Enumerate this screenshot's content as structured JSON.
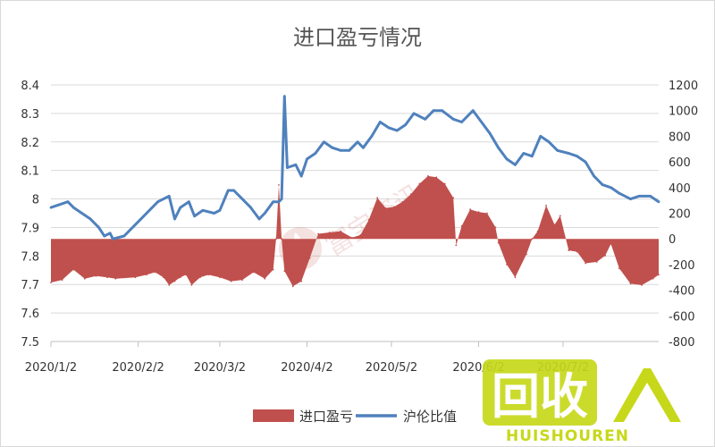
{
  "chart_data": {
    "type": "area+line",
    "title": "进口盈亏情况",
    "x_tick_labels": [
      "2020/1/2",
      "2020/2/2",
      "2020/3/2",
      "2020/4/2",
      "2020/5/2",
      "2020/6/2",
      "2020/7/2"
    ],
    "y_left": {
      "min": 7.5,
      "max": 8.4,
      "step": 0.1,
      "tick_labels": [
        "7.5",
        "7.6",
        "7.7",
        "7.8",
        "7.9",
        "8",
        "8.1",
        "8.2",
        "8.3",
        "8.4"
      ]
    },
    "y_right": {
      "min": -800,
      "max": 1200,
      "step": 200,
      "tick_labels": [
        "-800",
        "-600",
        "-400",
        "-200",
        "0",
        "200",
        "400",
        "600",
        "800",
        "1000",
        "1200"
      ]
    },
    "x_range": [
      "2020-01-02",
      "2020-08-05"
    ],
    "grid": true,
    "legend_position": "bottom",
    "series": [
      {
        "name": "进口盈亏",
        "type": "area",
        "axis": "right",
        "color": "#c0504d",
        "points": [
          [
            "2020-01-02",
            -340
          ],
          [
            "2020-01-06",
            -320
          ],
          [
            "2020-01-10",
            -240
          ],
          [
            "2020-01-14",
            -310
          ],
          [
            "2020-01-18",
            -290
          ],
          [
            "2020-01-22",
            -300
          ],
          [
            "2020-01-25",
            -310
          ],
          [
            "2020-02-01",
            -300
          ],
          [
            "2020-02-05",
            -280
          ],
          [
            "2020-02-08",
            -260
          ],
          [
            "2020-02-11",
            -300
          ],
          [
            "2020-02-13",
            -360
          ],
          [
            "2020-02-15",
            -330
          ],
          [
            "2020-02-17",
            -300
          ],
          [
            "2020-02-19",
            -280
          ],
          [
            "2020-02-21",
            -360
          ],
          [
            "2020-02-24",
            -300
          ],
          [
            "2020-02-27",
            -280
          ],
          [
            "2020-03-02",
            -300
          ],
          [
            "2020-03-06",
            -330
          ],
          [
            "2020-03-10",
            -320
          ],
          [
            "2020-03-14",
            -260
          ],
          [
            "2020-03-18",
            -310
          ],
          [
            "2020-03-21",
            -240
          ],
          [
            "2020-03-22",
            0
          ],
          [
            "2020-03-23",
            420
          ],
          [
            "2020-03-24",
            0
          ],
          [
            "2020-03-25",
            -250
          ],
          [
            "2020-03-28",
            -370
          ],
          [
            "2020-03-31",
            -330
          ],
          [
            "2020-04-03",
            -150
          ],
          [
            "2020-04-06",
            40
          ],
          [
            "2020-04-10",
            50
          ],
          [
            "2020-04-14",
            60
          ],
          [
            "2020-04-18",
            10
          ],
          [
            "2020-04-21",
            30
          ],
          [
            "2020-04-24",
            150
          ],
          [
            "2020-04-27",
            320
          ],
          [
            "2020-04-30",
            240
          ],
          [
            "2020-05-03",
            250
          ],
          [
            "2020-05-06",
            290
          ],
          [
            "2020-05-09",
            350
          ],
          [
            "2020-05-12",
            430
          ],
          [
            "2020-05-15",
            490
          ],
          [
            "2020-05-18",
            480
          ],
          [
            "2020-05-21",
            430
          ],
          [
            "2020-05-24",
            320
          ],
          [
            "2020-05-25",
            -50
          ],
          [
            "2020-05-27",
            100
          ],
          [
            "2020-05-30",
            230
          ],
          [
            "2020-06-02",
            210
          ],
          [
            "2020-06-05",
            200
          ],
          [
            "2020-06-08",
            90
          ],
          [
            "2020-06-09",
            -30
          ],
          [
            "2020-06-12",
            -200
          ],
          [
            "2020-06-15",
            -300
          ],
          [
            "2020-06-19",
            -120
          ],
          [
            "2020-06-21",
            0
          ],
          [
            "2020-06-23",
            60
          ],
          [
            "2020-06-26",
            260
          ],
          [
            "2020-06-29",
            110
          ],
          [
            "2020-07-01",
            180
          ],
          [
            "2020-07-04",
            -90
          ],
          [
            "2020-07-07",
            -100
          ],
          [
            "2020-07-10",
            -190
          ],
          [
            "2020-07-14",
            -180
          ],
          [
            "2020-07-17",
            -130
          ],
          [
            "2020-07-19",
            -40
          ],
          [
            "2020-07-22",
            -230
          ],
          [
            "2020-07-26",
            -350
          ],
          [
            "2020-07-30",
            -360
          ],
          [
            "2020-08-03",
            -310
          ],
          [
            "2020-08-05",
            -280
          ]
        ]
      },
      {
        "name": "沪伦比值",
        "type": "line",
        "axis": "left",
        "color": "#4f81bd",
        "points": [
          [
            "2020-01-02",
            7.97
          ],
          [
            "2020-01-05",
            7.98
          ],
          [
            "2020-01-08",
            7.99
          ],
          [
            "2020-01-10",
            7.97
          ],
          [
            "2020-01-13",
            7.95
          ],
          [
            "2020-01-16",
            7.93
          ],
          [
            "2020-01-19",
            7.9
          ],
          [
            "2020-01-21",
            7.87
          ],
          [
            "2020-01-23",
            7.88
          ],
          [
            "2020-01-24",
            7.86
          ],
          [
            "2020-01-28",
            7.87
          ],
          [
            "2020-02-03",
            7.93
          ],
          [
            "2020-02-09",
            7.99
          ],
          [
            "2020-02-13",
            8.01
          ],
          [
            "2020-02-15",
            7.93
          ],
          [
            "2020-02-17",
            7.97
          ],
          [
            "2020-02-20",
            7.99
          ],
          [
            "2020-02-22",
            7.94
          ],
          [
            "2020-02-25",
            7.96
          ],
          [
            "2020-02-29",
            7.95
          ],
          [
            "2020-03-02",
            7.96
          ],
          [
            "2020-03-05",
            8.03
          ],
          [
            "2020-03-07",
            8.03
          ],
          [
            "2020-03-10",
            8.0
          ],
          [
            "2020-03-13",
            7.97
          ],
          [
            "2020-03-16",
            7.93
          ],
          [
            "2020-03-18",
            7.95
          ],
          [
            "2020-03-21",
            7.99
          ],
          [
            "2020-03-23",
            7.99
          ],
          [
            "2020-03-24",
            8.0
          ],
          [
            "2020-03-25",
            8.36
          ],
          [
            "2020-03-26",
            8.11
          ],
          [
            "2020-03-29",
            8.12
          ],
          [
            "2020-03-31",
            8.08
          ],
          [
            "2020-04-02",
            8.14
          ],
          [
            "2020-04-05",
            8.16
          ],
          [
            "2020-04-08",
            8.2
          ],
          [
            "2020-04-11",
            8.18
          ],
          [
            "2020-04-14",
            8.17
          ],
          [
            "2020-04-17",
            8.17
          ],
          [
            "2020-04-20",
            8.2
          ],
          [
            "2020-04-22",
            8.18
          ],
          [
            "2020-04-25",
            8.22
          ],
          [
            "2020-04-28",
            8.27
          ],
          [
            "2020-05-01",
            8.25
          ],
          [
            "2020-05-04",
            8.24
          ],
          [
            "2020-05-07",
            8.26
          ],
          [
            "2020-05-10",
            8.3
          ],
          [
            "2020-05-14",
            8.28
          ],
          [
            "2020-05-17",
            8.31
          ],
          [
            "2020-05-20",
            8.31
          ],
          [
            "2020-05-24",
            8.28
          ],
          [
            "2020-05-27",
            8.27
          ],
          [
            "2020-05-31",
            8.31
          ],
          [
            "2020-06-03",
            8.27
          ],
          [
            "2020-06-06",
            8.23
          ],
          [
            "2020-06-09",
            8.18
          ],
          [
            "2020-06-12",
            8.14
          ],
          [
            "2020-06-15",
            8.12
          ],
          [
            "2020-06-18",
            8.16
          ],
          [
            "2020-06-21",
            8.15
          ],
          [
            "2020-06-24",
            8.22
          ],
          [
            "2020-06-27",
            8.2
          ],
          [
            "2020-06-30",
            8.17
          ],
          [
            "2020-07-04",
            8.16
          ],
          [
            "2020-07-07",
            8.15
          ],
          [
            "2020-07-10",
            8.13
          ],
          [
            "2020-07-13",
            8.08
          ],
          [
            "2020-07-16",
            8.05
          ],
          [
            "2020-07-19",
            8.04
          ],
          [
            "2020-07-22",
            8.02
          ],
          [
            "2020-07-26",
            8.0
          ],
          [
            "2020-07-29",
            8.01
          ],
          [
            "2020-08-02",
            8.01
          ],
          [
            "2020-08-05",
            7.99
          ]
        ]
      }
    ]
  },
  "watermark": {
    "center_text": "富宝资讯",
    "logo_main": "回收",
    "logo_sub": "HUISHOUREN",
    "logo_color": "#c7d81a"
  }
}
